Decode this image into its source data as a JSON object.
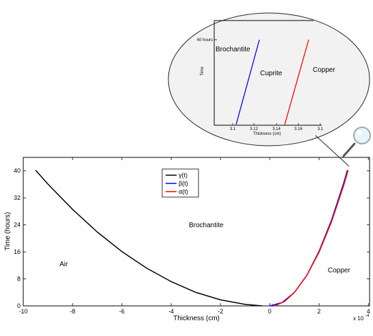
{
  "chart_data": [
    {
      "type": "line",
      "xlabel": "Thickness (cm)",
      "ylabel": "Time (hours)",
      "xlim": [
        -10,
        4.05
      ],
      "ylim": [
        0,
        44
      ],
      "x_scale_label": "x 10",
      "x_scale_exponent": "-4",
      "xticks": [
        -10,
        -8,
        -6,
        -4,
        -2,
        0,
        2,
        4
      ],
      "yticks": [
        0,
        8,
        16,
        24,
        32,
        40
      ],
      "grid": false,
      "legend": {
        "position": "upper-center",
        "entries": [
          {
            "label": "γ(t)",
            "color": "#000000"
          },
          {
            "label": "β(t)",
            "color": "#0000ff"
          },
          {
            "label": "α(t)",
            "color": "#ff0000"
          }
        ]
      },
      "annotations": [
        "Brochantite",
        "Air",
        "Copper"
      ],
      "series": [
        {
          "name": "γ(t)",
          "color": "#000000",
          "x": [
            -9.5,
            -9.0,
            -8.0,
            -7.0,
            -6.0,
            -5.0,
            -4.0,
            -3.0,
            -2.0,
            -1.0,
            -0.3
          ],
          "y": [
            40.2,
            36.1,
            28.6,
            21.9,
            16.1,
            11.2,
            7.2,
            4.0,
            1.8,
            0.45,
            0.0
          ]
        },
        {
          "name": "β(t)",
          "color": "#0000ff",
          "x": [
            0.0,
            0.5,
            1.0,
            1.5,
            2.0,
            2.5,
            3.0,
            3.15
          ],
          "y": [
            0.0,
            1.0,
            4.0,
            9.0,
            16.2,
            25.3,
            36.4,
            40.2
          ]
        },
        {
          "name": "α(t)",
          "color": "#ff0000",
          "x": [
            0.2,
            0.6,
            1.0,
            1.5,
            2.0,
            2.5,
            3.0,
            3.18
          ],
          "y": [
            0.0,
            1.3,
            4.0,
            9.0,
            15.9,
            24.8,
            35.7,
            40.2
          ]
        }
      ]
    },
    {
      "type": "line",
      "xlabel": "Thickness (cm)",
      "ylabel": "Time",
      "xticks": [
        "3.1",
        "3.12",
        "3.14",
        "3.16",
        "3.1"
      ],
      "ytick_label": "40 hours",
      "annotations": [
        "Brochantite",
        "Cuprite",
        "Copper"
      ],
      "series": [
        {
          "color": "#0000ff"
        },
        {
          "color": "#ff0000"
        }
      ]
    }
  ]
}
